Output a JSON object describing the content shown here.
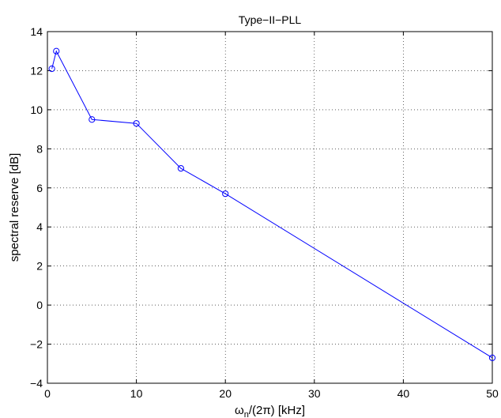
{
  "chart_data": {
    "type": "line",
    "title": "Type−II−PLL",
    "xlabel": {
      "main": "ω",
      "sub": "n",
      "rest": "/(2π) [kHz]"
    },
    "ylabel": "spectral reserve [dB]",
    "xlim": [
      0,
      50
    ],
    "ylim": [
      -4,
      14
    ],
    "x_ticks": [
      {
        "value": 0,
        "label": "0"
      },
      {
        "value": 10,
        "label": "10"
      },
      {
        "value": 20,
        "label": "20"
      },
      {
        "value": 30,
        "label": "30"
      },
      {
        "value": 40,
        "label": "40"
      },
      {
        "value": 50,
        "label": "50"
      }
    ],
    "y_ticks": [
      {
        "value": -4,
        "label": "−4"
      },
      {
        "value": -2,
        "label": "−2"
      },
      {
        "value": 0,
        "label": "0"
      },
      {
        "value": 2,
        "label": "2"
      },
      {
        "value": 4,
        "label": "4"
      },
      {
        "value": 6,
        "label": "6"
      },
      {
        "value": 8,
        "label": "8"
      },
      {
        "value": 10,
        "label": "10"
      },
      {
        "value": 12,
        "label": "12"
      },
      {
        "value": 14,
        "label": "14"
      }
    ],
    "grid": true,
    "series": [
      {
        "color": "#0000ff",
        "marker": "circle",
        "x": [
          0.5,
          1,
          5,
          10,
          15,
          20,
          50
        ],
        "y": [
          12.1,
          13.0,
          9.5,
          9.3,
          7.0,
          5.7,
          -2.7
        ]
      }
    ]
  }
}
